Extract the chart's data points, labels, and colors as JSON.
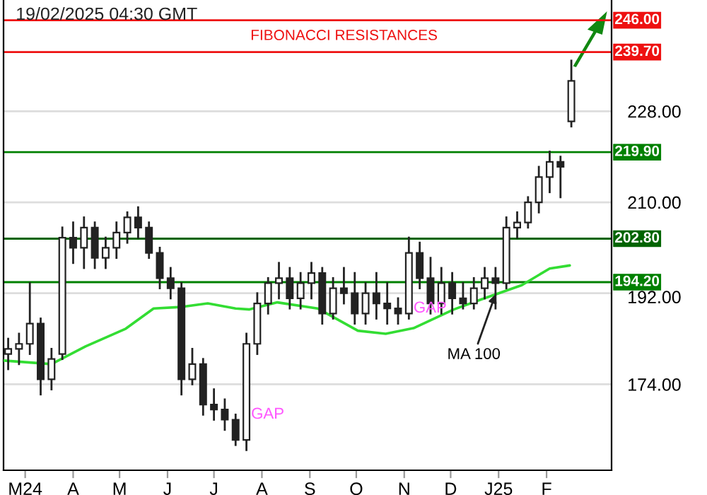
{
  "chart_data": {
    "type": "candlestick",
    "x": [
      "2024-02-19",
      "2024-02-26",
      "2024-03-04",
      "2024-03-11",
      "2024-03-18",
      "2024-03-25",
      "2024-04-01",
      "2024-04-08",
      "2024-04-15",
      "2024-04-22",
      "2024-04-29",
      "2024-05-06",
      "2024-05-13",
      "2024-05-20",
      "2024-05-27",
      "2024-06-03",
      "2024-06-10",
      "2024-06-17",
      "2024-06-24",
      "2024-07-01",
      "2024-07-08",
      "2024-07-15",
      "2024-07-22",
      "2024-07-29",
      "2024-08-05",
      "2024-08-12",
      "2024-08-19",
      "2024-08-26",
      "2024-09-02",
      "2024-09-09",
      "2024-09-16",
      "2024-09-23",
      "2024-09-30",
      "2024-10-07",
      "2024-10-14",
      "2024-10-21",
      "2024-10-28",
      "2024-11-04",
      "2024-11-11",
      "2024-11-18",
      "2024-11-25",
      "2024-12-02",
      "2024-12-09",
      "2024-12-16",
      "2024-12-23",
      "2024-12-30",
      "2025-01-06",
      "2025-01-13",
      "2025-01-20",
      "2025-01-27",
      "2025-02-03",
      "2025-02-10",
      "2025-02-17"
    ],
    "ohlc": [
      [
        180,
        183,
        177,
        181
      ],
      [
        181,
        184,
        178,
        182
      ],
      [
        182,
        194,
        180,
        186
      ],
      [
        186,
        187,
        172,
        175
      ],
      [
        175,
        181,
        173,
        179
      ],
      [
        180,
        205,
        179,
        203
      ],
      [
        203,
        206,
        198,
        201
      ],
      [
        201,
        207,
        197,
        205
      ],
      [
        205,
        206,
        197,
        199
      ],
      [
        199,
        203,
        197,
        201
      ],
      [
        201,
        206,
        199,
        204
      ],
      [
        204,
        208,
        202,
        207
      ],
      [
        207,
        209,
        203,
        205
      ],
      [
        205,
        206,
        199,
        200
      ],
      [
        200,
        201,
        193,
        195
      ],
      [
        195,
        197,
        191,
        193
      ],
      [
        193,
        194,
        172,
        175
      ],
      [
        175,
        181,
        174,
        178
      ],
      [
        178,
        179,
        168,
        170
      ],
      [
        170,
        173,
        167,
        169
      ],
      [
        169,
        171,
        165,
        167
      ],
      [
        167,
        168,
        162,
        163
      ],
      [
        163,
        184,
        161,
        182
      ],
      [
        182,
        192,
        180,
        190
      ],
      [
        190,
        195,
        188,
        194
      ],
      [
        194,
        198,
        191,
        195
      ],
      [
        195,
        197,
        189,
        191
      ],
      [
        191,
        196,
        189,
        194
      ],
      [
        194,
        198,
        191,
        196
      ],
      [
        196,
        197,
        186,
        188
      ],
      [
        188,
        195,
        187,
        193
      ],
      [
        193,
        197,
        190,
        192
      ],
      [
        192,
        196,
        186,
        188
      ],
      [
        188,
        194,
        186,
        192
      ],
      [
        192,
        196,
        187,
        190
      ],
      [
        190,
        194,
        186,
        189
      ],
      [
        189,
        191,
        186,
        188
      ],
      [
        188,
        203,
        187,
        200
      ],
      [
        200,
        202,
        193,
        195
      ],
      [
        195,
        199,
        188,
        190
      ],
      [
        190,
        197,
        188,
        194
      ],
      [
        194,
        196,
        188,
        191
      ],
      [
        191,
        194,
        189,
        190
      ],
      [
        190,
        195,
        189,
        193
      ],
      [
        193,
        197,
        191,
        195
      ],
      [
        195,
        197,
        189,
        194
      ],
      [
        194,
        207,
        193,
        205
      ],
      [
        205,
        208,
        203,
        206
      ],
      [
        206,
        211,
        205,
        210
      ],
      [
        210,
        217,
        208,
        215
      ],
      [
        215,
        220,
        212,
        218
      ],
      [
        218,
        219,
        211,
        217
      ],
      [
        226,
        238,
        225,
        234
      ]
    ],
    "color": "#222222",
    "series": [
      {
        "type": "line",
        "color": "#33dd33",
        "x": [
          "2024-02-16",
          "2024-03-18",
          "2024-04-09",
          "2024-05-05",
          "2024-05-23",
          "2024-06-10",
          "2024-06-27",
          "2024-07-15",
          "2024-07-24",
          "2024-08-11",
          "2024-09-06",
          "2024-10-02",
          "2024-10-20",
          "2024-11-07",
          "2024-12-03",
          "2024-12-21",
          "2025-01-16",
          "2025-02-03",
          "2025-02-16"
        ],
        "values": [
          178.7,
          178,
          181.5,
          185,
          189,
          189.3,
          190,
          189,
          188.8,
          190.2,
          189,
          184.6,
          184,
          185.1,
          188.8,
          190.8,
          193.6,
          196.9,
          197.5
        ]
      }
    ],
    "xlim": [
      "2024-02-16",
      "2025-03-15"
    ],
    "xticks": [
      {
        "value": "2024-03-01",
        "label": "M24"
      },
      {
        "value": "2024-04-01",
        "label": "A"
      },
      {
        "value": "2024-05-01",
        "label": "M"
      },
      {
        "value": "2024-06-01",
        "label": "J"
      },
      {
        "value": "2024-07-01",
        "label": "J"
      },
      {
        "value": "2024-08-01",
        "label": "A"
      },
      {
        "value": "2024-09-01",
        "label": "S"
      },
      {
        "value": "2024-10-01",
        "label": "O"
      },
      {
        "value": "2024-11-01",
        "label": "N"
      },
      {
        "value": "2024-12-01",
        "label": "D"
      },
      {
        "value": "2025-01-01",
        "label": "J25"
      },
      {
        "value": "2025-02-01",
        "label": "F"
      }
    ],
    "ylim": [
      157,
      250
    ],
    "yticks": [
      {
        "value": 174,
        "label": "174.00"
      },
      {
        "value": 192,
        "label": "192.00"
      },
      {
        "value": 210,
        "label": "210.00"
      },
      {
        "value": 228,
        "label": "228.00"
      }
    ],
    "grid": "y",
    "legend": false,
    "ref_lines": [
      {
        "axis": "y",
        "value": 246,
        "label": "246.00",
        "color": "#ee1111"
      },
      {
        "axis": "y",
        "value": 239.7,
        "label": "239.70",
        "color": "#ee1111"
      },
      {
        "axis": "y",
        "value": 219.9,
        "label": "219.90",
        "color": "#008000"
      },
      {
        "axis": "y",
        "value": 202.8,
        "label": "202.80",
        "color": "#006400"
      },
      {
        "axis": "y",
        "value": 194.2,
        "label": "194.20",
        "color": "#008000"
      }
    ],
    "annotations": [
      "19/02/2025 04:30 GMT",
      "FIBONACCI RESISTANCES",
      {
        "text": "GAP",
        "x": "2024-07-22",
        "y": 168
      },
      {
        "text": "GAP",
        "x": "2024-11-04",
        "y": 189
      },
      {
        "text": "MA 100",
        "x": "2024-12-30",
        "y": 191.8
      }
    ]
  }
}
